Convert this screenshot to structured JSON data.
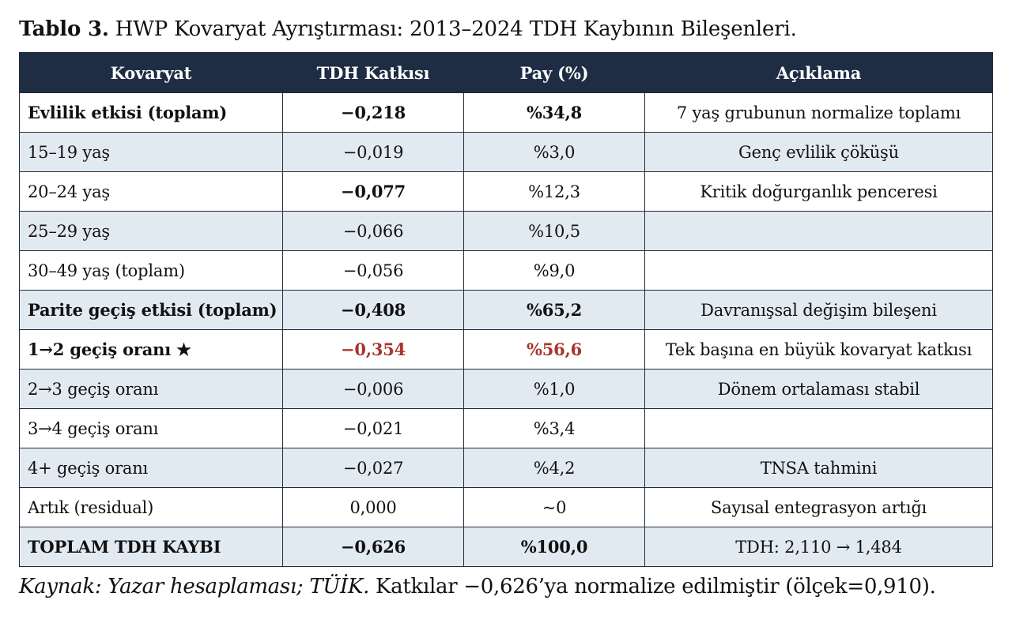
{
  "caption": {
    "lead": "Tablo 3.",
    "text": "HWP Kovaryat Ayrıştırması: 2013–2024 TDH Kaybının Bileşenleri."
  },
  "table": {
    "headers": [
      "Kovaryat",
      "TDH Katkısı",
      "Pay (%)",
      "Açıklama"
    ],
    "rows": [
      {
        "kovaryat": "Evlilik etkisi (toplam)",
        "katki": "−0,218",
        "pay": "%34,8",
        "aciklama": "7 yaş grubunun normalize toplamı",
        "bold_label": true,
        "bold_values": true,
        "highlight": false
      },
      {
        "kovaryat": "15–19 yaş",
        "katki": "−0,019",
        "pay": "%3,0",
        "aciklama": "Genç evlilik çöküşü",
        "bold_label": false,
        "bold_values": false,
        "highlight": false
      },
      {
        "kovaryat": "20–24 yaş",
        "katki": "−0,077",
        "pay": "%12,3",
        "aciklama": "Kritik doğurganlık penceresi",
        "bold_label": false,
        "bold_values": false,
        "bold_katki": true,
        "highlight": false
      },
      {
        "kovaryat": "25–29 yaş",
        "katki": "−0,066",
        "pay": "%10,5",
        "aciklama": "",
        "bold_label": false,
        "bold_values": false,
        "highlight": false
      },
      {
        "kovaryat": "30–49 yaş (toplam)",
        "katki": "−0,056",
        "pay": "%9,0",
        "aciklama": "",
        "bold_label": false,
        "bold_values": false,
        "highlight": false
      },
      {
        "kovaryat": "Parite geçiş etkisi (toplam)",
        "katki": "−0,408",
        "pay": "%65,2",
        "aciklama": "Davranışsal değişim bileşeni",
        "bold_label": true,
        "bold_values": true,
        "highlight": false
      },
      {
        "kovaryat": "1→2 geçiş oranı ★",
        "katki": "−0,354",
        "pay": "%56,6",
        "aciklama": "Tek başına en büyük kovaryat katkısı",
        "bold_label": true,
        "bold_values": true,
        "highlight": true
      },
      {
        "kovaryat": "2→3 geçiş oranı",
        "katki": "−0,006",
        "pay": "%1,0",
        "aciklama": "Dönem ortalaması stabil",
        "bold_label": false,
        "bold_values": false,
        "highlight": false
      },
      {
        "kovaryat": "3→4 geçiş oranı",
        "katki": "−0,021",
        "pay": "%3,4",
        "aciklama": "",
        "bold_label": false,
        "bold_values": false,
        "highlight": false
      },
      {
        "kovaryat": "4+ geçiş oranı",
        "katki": "−0,027",
        "pay": "%4,2",
        "aciklama": "TNSA tahmini",
        "bold_label": false,
        "bold_values": false,
        "highlight": false
      },
      {
        "kovaryat": "Artık (residual)",
        "katki": "0,000",
        "pay": "~0",
        "aciklama": "Sayısal entegrasyon artığı",
        "bold_label": false,
        "bold_values": false,
        "highlight": false
      },
      {
        "kovaryat": "TOPLAM TDH KAYBI",
        "katki": "−0,626",
        "pay": "%100,0",
        "aciklama": "TDH: 2,110 → 1,484",
        "bold_label": true,
        "bold_values": true,
        "highlight": false
      }
    ]
  },
  "colors": {
    "header_bg": "#1e2d44",
    "stripe": "#e2eaf1",
    "highlight_red": "#a8352c"
  },
  "footnote": {
    "source": "Kaynak: Yazar hesaplaması; TÜİK.",
    "text": " Katkılar −0,626’ya normalize edilmiştir (ölçek=0,910)."
  }
}
